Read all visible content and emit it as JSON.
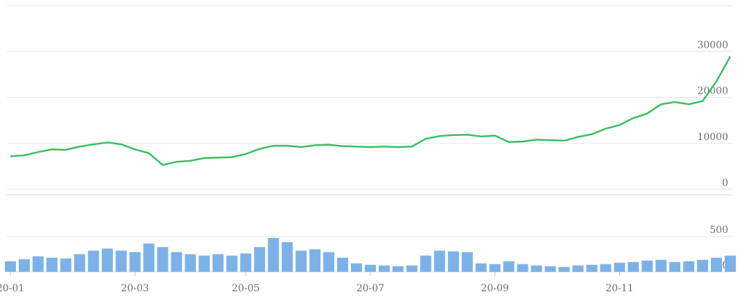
{
  "chart_data": {
    "type": "line",
    "categories": [
      "20-01",
      null,
      null,
      null,
      null,
      null,
      null,
      null,
      null,
      "20-03",
      null,
      null,
      null,
      null,
      null,
      null,
      null,
      "20-05",
      null,
      null,
      null,
      null,
      null,
      null,
      null,
      null,
      "20-07",
      null,
      null,
      null,
      null,
      null,
      null,
      null,
      null,
      "20-09",
      null,
      null,
      null,
      null,
      null,
      null,
      null,
      null,
      "20-11",
      null,
      null,
      null,
      null,
      null,
      null,
      null,
      null
    ],
    "ylim": [
      0,
      40000
    ],
    "yticks": [
      0,
      10000,
      20000,
      30000
    ],
    "y2lim": [
      0,
      1000
    ],
    "y2ticks": [
      0,
      500
    ],
    "grid": true,
    "series": [
      {
        "color": "#35c05f",
        "values": [
          7200,
          7400,
          8100,
          8700,
          8600,
          9300,
          9800,
          10200,
          9800,
          8700,
          7900,
          5300,
          6000,
          6200,
          6800,
          6900,
          7000,
          7700,
          8800,
          9500,
          9500,
          9200,
          9600,
          9700,
          9400,
          9300,
          9200,
          9300,
          9200,
          9300,
          11000,
          11600,
          11800,
          11900,
          11500,
          11700,
          10300,
          10400,
          10800,
          10700,
          10600,
          11400,
          12000,
          13200,
          14000,
          15500,
          16500,
          18500,
          19000,
          18500,
          19200,
          23500,
          28900
        ]
      },
      {
        "type": "bar",
        "axis": "y2",
        "color": "#7db2e8",
        "values": [
          150,
          180,
          220,
          200,
          190,
          250,
          300,
          330,
          300,
          280,
          400,
          350,
          280,
          250,
          230,
          250,
          230,
          260,
          350,
          480,
          420,
          300,
          320,
          280,
          200,
          120,
          100,
          90,
          80,
          90,
          230,
          300,
          290,
          280,
          120,
          110,
          150,
          110,
          90,
          80,
          70,
          90,
          100,
          110,
          130,
          140,
          160,
          170,
          140,
          150,
          170,
          200,
          230
        ]
      }
    ]
  }
}
